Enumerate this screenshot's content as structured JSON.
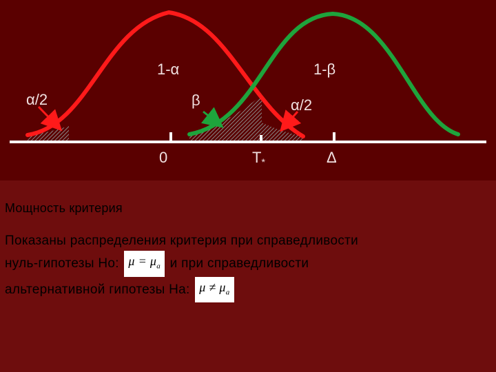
{
  "diagram": {
    "label_1_alpha": "1-α",
    "label_1_beta": "1-β",
    "label_alpha_half_left": "α/2",
    "label_alpha_half_right": "α/2",
    "label_beta": "β",
    "tick_zero": "0",
    "tick_t": "T",
    "tick_t_sub": "*",
    "tick_delta": "Δ",
    "colors": {
      "null_curve": "#ff1a1a",
      "alt_curve": "#1ea43c",
      "axis": "#ffffff",
      "background": "#5a0000"
    }
  },
  "caption": "Мощность критерия",
  "description": {
    "line1": "Показаны распределения критерия при справедливости",
    "line2_before": "нуль-гипотезы Но:",
    "formula_null_mu": "μ",
    "formula_null_op": "=",
    "formula_null_mu_a": "μ",
    "formula_null_sub": "a",
    "line2_after": "и при справедливости",
    "line3_before": "альтернативной гипотезы На:",
    "formula_alt_mu": "μ",
    "formula_alt_op": "≠",
    "formula_alt_mu_a": "μ",
    "formula_alt_sub": "a"
  }
}
